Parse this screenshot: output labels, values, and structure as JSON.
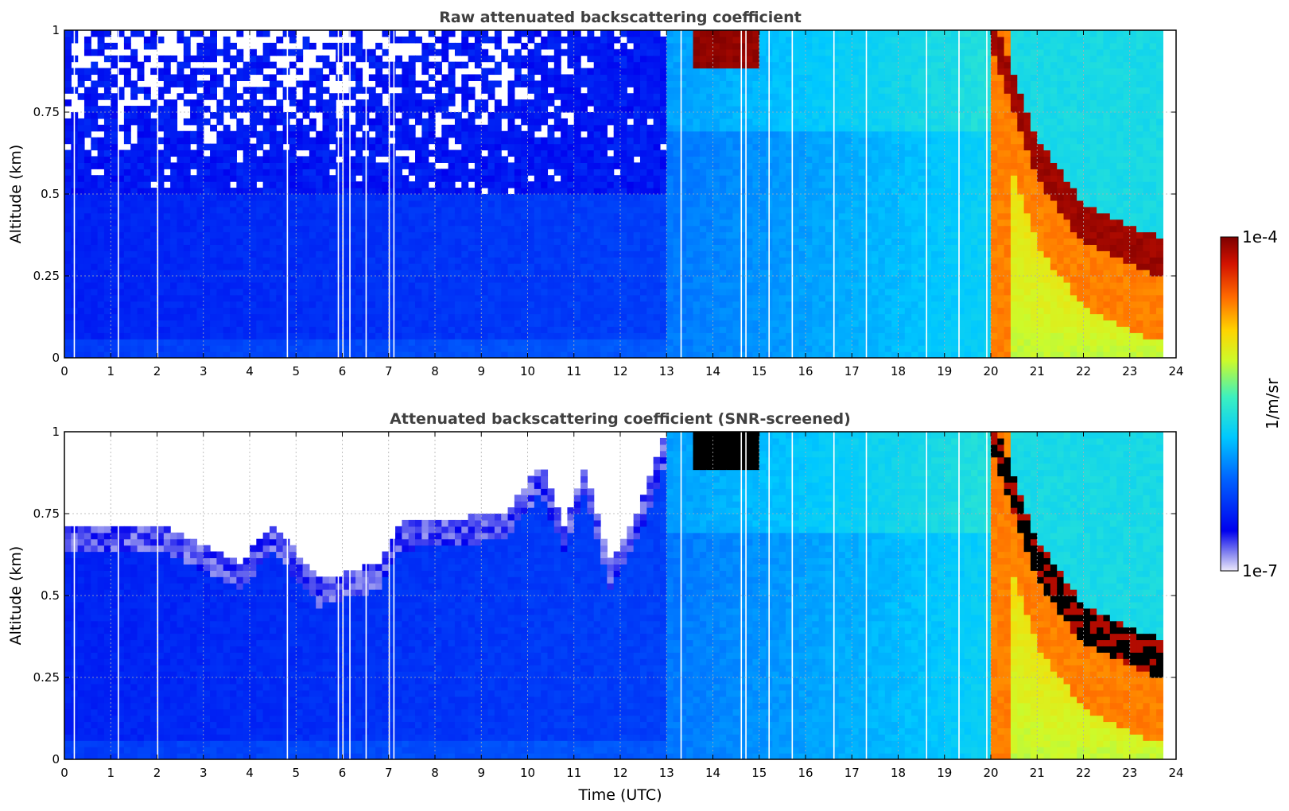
{
  "chart_data": [
    {
      "type": "heatmap",
      "title": "Raw attenuated backscattering coefficient",
      "xlabel": "",
      "ylabel": "Altitude (km)",
      "xlim": [
        0,
        24
      ],
      "ylim": [
        0,
        1
      ],
      "x_ticks": [
        "0",
        "1",
        "2",
        "3",
        "4",
        "5",
        "6",
        "7",
        "8",
        "9",
        "10",
        "11",
        "12",
        "13",
        "14",
        "15",
        "16",
        "17",
        "18",
        "19",
        "20",
        "21",
        "22",
        "23",
        "24"
      ],
      "y_ticks": [
        "0",
        "0.25",
        "0.5",
        "0.75",
        "1"
      ],
      "grid": true,
      "features": [
        {
          "name": "noisy upper layer",
          "t_start": 0,
          "t_end": 13,
          "alt_start": 0.5,
          "alt_end": 1.0,
          "level": "noise/white"
        },
        {
          "name": "boundary layer",
          "t_start": 0,
          "t_end": 13,
          "alt_start": 0,
          "alt_end": 0.5,
          "level": "low (blue)"
        },
        {
          "name": "cloud",
          "t_start": 13.5,
          "t_end": 15.0,
          "alt_start": 0.88,
          "alt_end": 1.0,
          "level": "high (dark red)"
        },
        {
          "name": "fog/low cloud",
          "t_start": 20.0,
          "t_end": 23.7,
          "alt_start": 0.15,
          "alt_end": 1.0,
          "level": "high (orange-red)"
        }
      ]
    },
    {
      "type": "heatmap",
      "title": "Attenuated backscattering coefficient (SNR-screened)",
      "xlabel": "Time (UTC)",
      "ylabel": "Altitude (km)",
      "xlim": [
        0,
        24
      ],
      "ylim": [
        0,
        1
      ],
      "x_ticks": [
        "0",
        "1",
        "2",
        "3",
        "4",
        "5",
        "6",
        "7",
        "8",
        "9",
        "10",
        "11",
        "12",
        "13",
        "14",
        "15",
        "16",
        "17",
        "18",
        "19",
        "20",
        "21",
        "22",
        "23",
        "24"
      ],
      "y_ticks": [
        "0",
        "0.25",
        "0.5",
        "0.75",
        "1"
      ],
      "grid": true,
      "screened_top_km": [
        [
          0,
          0.72
        ],
        [
          2,
          0.72
        ],
        [
          3.8,
          0.6
        ],
        [
          4.5,
          0.72
        ],
        [
          5.5,
          0.55
        ],
        [
          6.8,
          0.6
        ],
        [
          7.2,
          0.72
        ],
        [
          9.5,
          0.75
        ],
        [
          10.3,
          0.9
        ],
        [
          10.8,
          0.7
        ],
        [
          11.2,
          0.9
        ],
        [
          11.8,
          0.6
        ],
        [
          12.5,
          0.8
        ],
        [
          13,
          1.0
        ]
      ]
    }
  ],
  "colorbar": {
    "label": "1/m/sr",
    "max_label": "1e-4",
    "min_label": "1e-7",
    "colormap": "jet"
  }
}
